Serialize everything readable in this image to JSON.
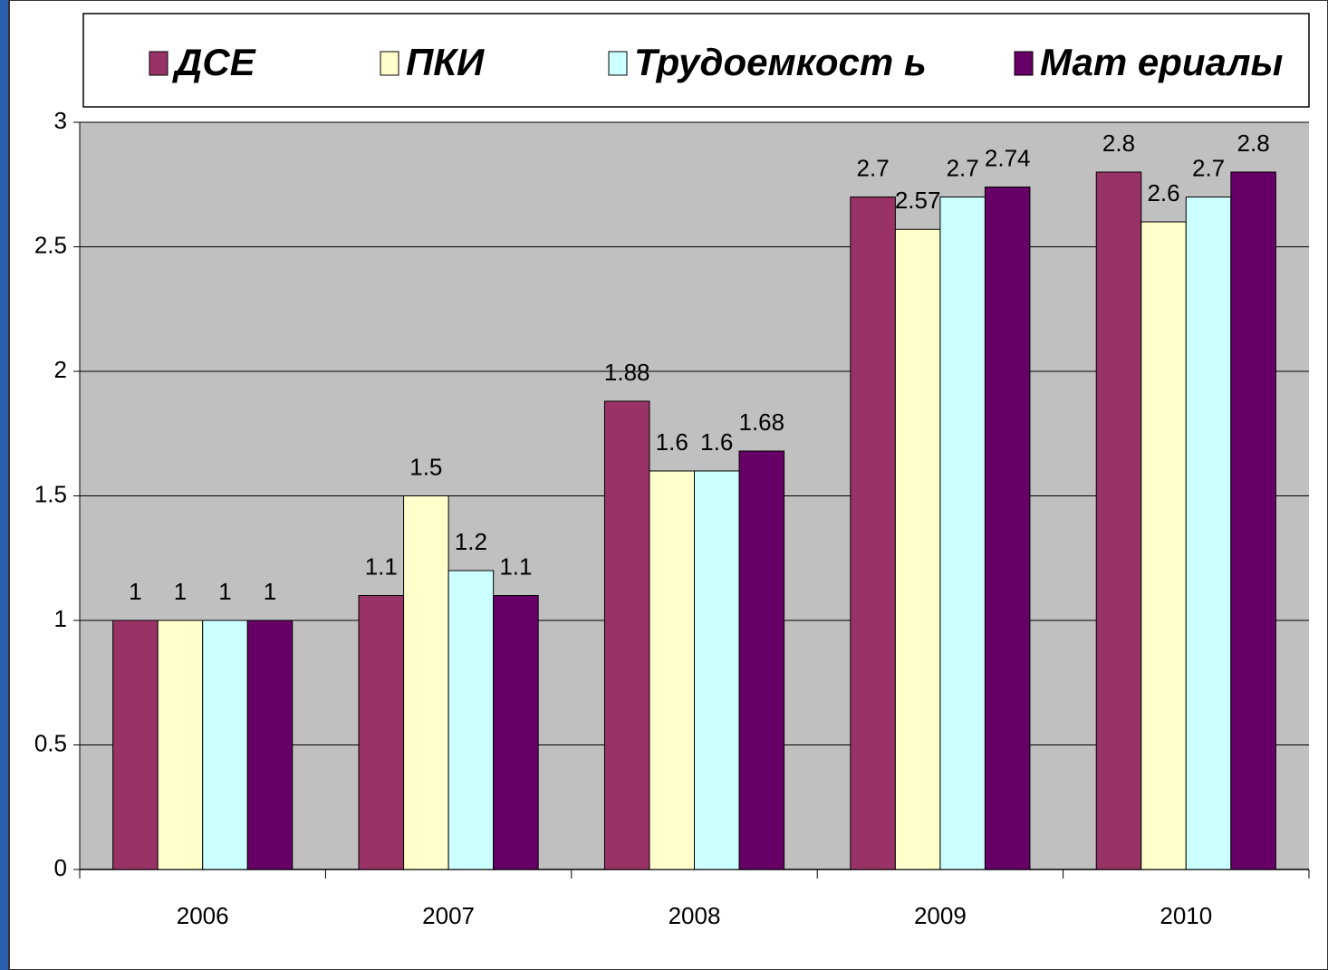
{
  "chart_data": {
    "type": "bar",
    "categories": [
      "2006",
      "2007",
      "2008",
      "2009",
      "2010"
    ],
    "series": [
      {
        "name": "ДСЕ",
        "color": "#993366",
        "values": [
          1,
          1.1,
          1.88,
          2.7,
          2.8
        ]
      },
      {
        "name": "ПКИ",
        "color": "#ffffcc",
        "values": [
          1,
          1.5,
          1.6,
          2.57,
          2.6
        ]
      },
      {
        "name": "Трудоемкост ь",
        "color": "#ccffff",
        "values": [
          1,
          1.2,
          1.6,
          2.7,
          2.7
        ]
      },
      {
        "name": "Мат ериалы",
        "color": "#660066",
        "values": [
          1,
          1.1,
          1.68,
          2.74,
          2.8
        ]
      }
    ],
    "ylim": [
      0,
      3
    ],
    "yticks": [
      0,
      0.5,
      1,
      1.5,
      2,
      2.5,
      3
    ],
    "grid": true,
    "legend": "top"
  }
}
